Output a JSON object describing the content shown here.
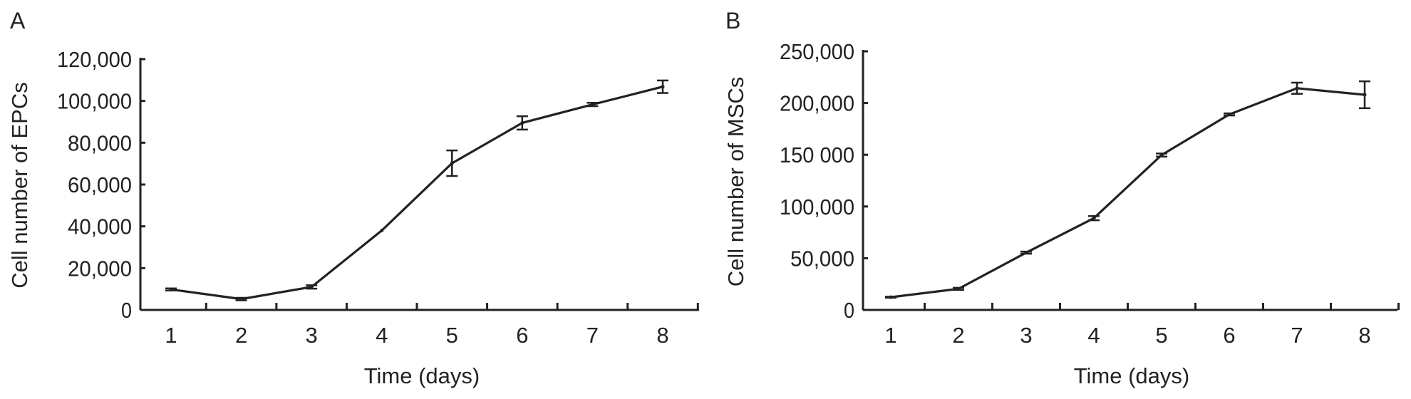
{
  "chart_data": [
    {
      "panel_label": "A",
      "type": "line",
      "xlabel": "Time (days)",
      "ylabel": "Cell number of EPCs",
      "x": [
        1,
        2,
        3,
        4,
        5,
        6,
        7,
        8
      ],
      "x_tick_labels": [
        "1",
        "2",
        "3",
        "4",
        "5",
        "6",
        "7",
        "8"
      ],
      "y_ticks": [
        0,
        20000,
        40000,
        60000,
        80000,
        100000,
        120000
      ],
      "y_tick_labels": [
        "0",
        "20,000",
        "40,000",
        "60,000",
        "80,000",
        "100,000",
        "120,000"
      ],
      "ylim": [
        0,
        120000
      ],
      "xlim": [
        0.55,
        8.65
      ],
      "grid": false,
      "series": [
        {
          "values": [
            9800,
            5200,
            11000,
            38000,
            70200,
            89500,
            98300,
            106800
          ],
          "errors": [
            500,
            600,
            800,
            0,
            6100,
            3200,
            800,
            3000
          ]
        }
      ],
      "line_color": "#222222"
    },
    {
      "panel_label": "B",
      "type": "line",
      "xlabel": "Time (days)",
      "ylabel": "Cell number of MSCs",
      "x": [
        1,
        2,
        3,
        4,
        5,
        6,
        7,
        8
      ],
      "x_tick_labels": [
        "1",
        "2",
        "3",
        "4",
        "5",
        "6",
        "7",
        "8"
      ],
      "y_ticks": [
        0,
        50000,
        100000,
        150000,
        200000,
        250000
      ],
      "y_tick_labels": [
        "0",
        "50,000",
        "100,000",
        "150 000",
        "200,000",
        "250,000"
      ],
      "ylim": [
        0,
        250000
      ],
      "xlim": [
        0.5,
        8.5
      ],
      "grid": false,
      "series": [
        {
          "values": [
            12300,
            20400,
            55400,
            88700,
            149700,
            189000,
            214300,
            208000
          ],
          "errors": [
            500,
            1000,
            1000,
            2000,
            1500,
            1000,
            5400,
            13000
          ]
        }
      ],
      "line_color": "#222222"
    }
  ]
}
